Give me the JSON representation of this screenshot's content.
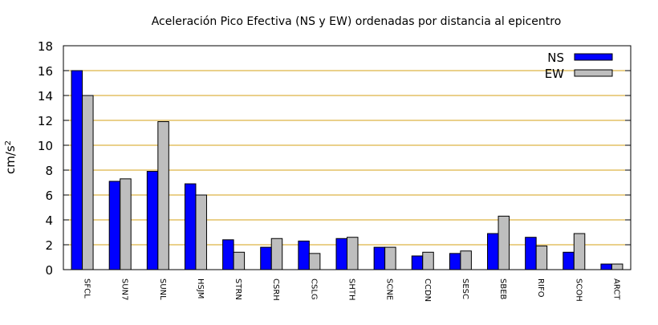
{
  "chart_data": {
    "type": "bar",
    "title": "Aceleración Pico Efectiva (NS y EW) ordenadas por distancia al epicentro",
    "xlabel": "",
    "ylabel": "cm/s",
    "ylabel_superscript": "2",
    "ylim": [
      0,
      18
    ],
    "yticks": [
      0,
      2,
      4,
      6,
      8,
      10,
      12,
      14,
      16,
      18
    ],
    "grid": "horizontal",
    "legend_position": "top-right",
    "categories": [
      "SFCL",
      "SUN7",
      "SUNL",
      "HSJM",
      "STRN",
      "CSRH",
      "CSLG",
      "SHTH",
      "SCNE",
      "CCDN",
      "SESC",
      "SBEB",
      "RIFO",
      "SCOH",
      "ARCT"
    ],
    "series": [
      {
        "name": "NS",
        "color": "#0000ff",
        "values": [
          16.0,
          7.1,
          7.9,
          6.9,
          2.4,
          1.8,
          2.3,
          2.5,
          1.8,
          1.1,
          1.3,
          2.9,
          2.6,
          1.4,
          0.45
        ]
      },
      {
        "name": "EW",
        "color": "#bebebe",
        "values": [
          14.0,
          7.3,
          11.9,
          6.0,
          1.4,
          2.5,
          1.3,
          2.6,
          1.8,
          1.4,
          1.5,
          4.3,
          1.9,
          2.9,
          0.45
        ]
      }
    ],
    "colors": {
      "grid": "#d4a017",
      "axis": "#000000",
      "bar_edge": "#000000"
    }
  }
}
